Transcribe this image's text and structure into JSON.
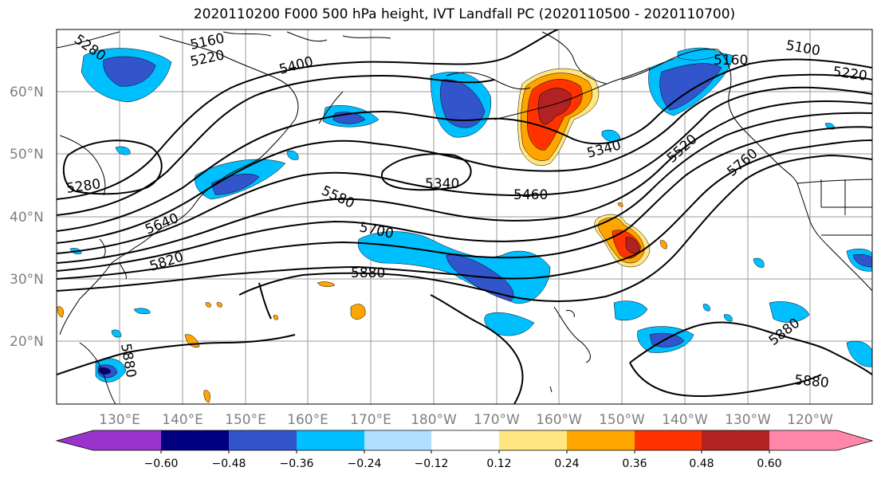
{
  "title": "2020110200 F000 500 hPa height, IVT Landfall PC (2020110500 - 2020110700)",
  "lat_labels": [
    "60°N",
    "50°N",
    "40°N",
    "30°N",
    "20°N"
  ],
  "lon_labels": [
    "130°E",
    "140°E",
    "150°E",
    "160°E",
    "170°E",
    "180°W",
    "170°W",
    "160°W",
    "150°W",
    "140°W",
    "130°W",
    "120°W"
  ],
  "contour_labels": [
    "5160",
    "5220",
    "5280",
    "5400",
    "5340",
    "5460",
    "5520",
    "5580",
    "5640",
    "5700",
    "5760",
    "5820",
    "5880",
    "5280",
    "5160",
    "5100",
    "5220",
    "5340",
    "5880",
    "5880",
    "5880"
  ],
  "colorbar": {
    "ticks": [
      "−0.60",
      "−0.48",
      "−0.36",
      "−0.24",
      "−0.12",
      "0.12",
      "0.24",
      "0.36",
      "0.48",
      "0.60"
    ],
    "colors": [
      "#9933cc",
      "#000080",
      "#3355cc",
      "#00bfff",
      "#b0e0ff",
      "#ffffff",
      "#ffe680",
      "#ffa500",
      "#ff3300",
      "#b22222",
      "#ff88aa"
    ]
  }
}
